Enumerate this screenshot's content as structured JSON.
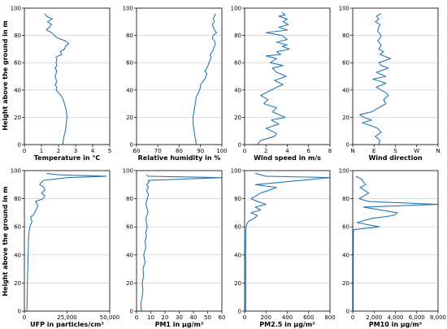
{
  "figure": {
    "ylabel": "Height above the ground in m",
    "line_color": "#2878b4"
  },
  "chart_data": [
    {
      "type": "line",
      "xlabel": "Temperature in °C",
      "ylabel": "Height above the ground in m",
      "xlim": [
        0,
        5
      ],
      "ylim": [
        0,
        100
      ],
      "xticks": [
        0,
        1,
        2,
        3,
        4,
        5
      ],
      "xtick_labels": [
        "0",
        "1",
        "2",
        "3",
        "4",
        "5"
      ],
      "yticks": [
        0,
        20,
        40,
        60,
        80,
        100
      ],
      "ytick_labels": [
        "0",
        "20",
        "40",
        "60",
        "80",
        "100"
      ],
      "grid": true,
      "series": [
        {
          "x": [
            2.25,
            2.3,
            2.4,
            2.45,
            2.5,
            2.45,
            2.35,
            2.2,
            2.0,
            1.85,
            1.9,
            1.8,
            1.9,
            1.85,
            1.8,
            1.85,
            1.9,
            1.8,
            1.9,
            1.85,
            1.9,
            1.85,
            2.0,
            2.2,
            2.1,
            2.35,
            2.4,
            2.6,
            2.4,
            1.95,
            1.75,
            1.6,
            1.3,
            1.6,
            1.35,
            1.65,
            1.3,
            1.2
          ],
          "y": [
            0,
            5,
            10,
            15,
            20,
            25,
            30,
            35,
            38,
            40,
            42,
            44,
            46,
            48,
            50,
            52,
            54,
            56,
            58,
            60,
            62,
            64,
            65,
            66,
            68,
            70,
            72,
            74,
            76,
            78,
            80,
            82,
            84,
            88,
            90,
            92,
            94,
            96
          ]
        }
      ]
    },
    {
      "type": "line",
      "xlabel": "Relative humidity in %",
      "ylabel": "",
      "xlim": [
        60,
        100
      ],
      "ylim": [
        0,
        100
      ],
      "xticks": [
        60,
        70,
        80,
        90,
        100
      ],
      "xtick_labels": [
        "60",
        "70",
        "80",
        "90",
        "100"
      ],
      "yticks": [
        0,
        20,
        40,
        60,
        80,
        100
      ],
      "ytick_labels": [
        "0",
        "20",
        "40",
        "60",
        "80",
        "100"
      ],
      "grid": true,
      "series": [
        {
          "x": [
            88,
            87.5,
            87,
            86.5,
            86.5,
            87,
            87.5,
            88,
            89,
            89.5,
            90,
            90,
            91,
            92,
            92.5,
            93,
            92,
            93,
            93.5,
            94,
            94.5,
            95,
            94.5,
            95.5,
            96,
            96.5,
            97,
            96.5,
            95.5,
            96,
            97.5,
            96.5,
            95.5,
            96.5,
            96,
            97
          ],
          "y": [
            0,
            5,
            10,
            15,
            20,
            25,
            30,
            35,
            38,
            40,
            42,
            44,
            46,
            48,
            50,
            52,
            54,
            56,
            58,
            60,
            62,
            64,
            66,
            68,
            70,
            72,
            74,
            76,
            78,
            80,
            82,
            84,
            88,
            90,
            92,
            96
          ]
        }
      ]
    },
    {
      "type": "line",
      "xlabel": "Wind speed in m/s",
      "ylabel": "",
      "xlim": [
        0,
        8
      ],
      "ylim": [
        0,
        100
      ],
      "xticks": [
        0,
        2,
        4,
        6,
        8
      ],
      "xtick_labels": [
        "0",
        "2",
        "4",
        "6",
        "8"
      ],
      "yticks": [
        0,
        20,
        40,
        60,
        80,
        100
      ],
      "ytick_labels": [
        "0",
        "20",
        "40",
        "60",
        "80",
        "100"
      ],
      "grid": true,
      "series": [
        {
          "x": [
            1.2,
            1.5,
            2.8,
            3.0,
            2.0,
            3.2,
            2.5,
            3.8,
            2.6,
            3.0,
            1.8,
            2.2,
            1.5,
            2.5,
            3.0,
            3.6,
            2.8,
            3.9,
            3.0,
            2.6,
            3.6,
            2.4,
            3.0,
            2.0,
            3.4,
            3.0,
            4.2,
            3.5,
            4.0,
            3.0,
            4.0,
            3.5,
            2.0,
            4.0,
            3.2,
            4.1,
            3.6,
            4.0,
            3.2,
            3.8,
            3.5
          ],
          "y": [
            0,
            3,
            6,
            8,
            12,
            15,
            18,
            20,
            24,
            27,
            30,
            33,
            36,
            40,
            42,
            44,
            47,
            50,
            53,
            56,
            58,
            60,
            63,
            65,
            66,
            68,
            70,
            72,
            73,
            75,
            77,
            80,
            82,
            84,
            86,
            88,
            90,
            92,
            94,
            95,
            97
          ]
        }
      ]
    },
    {
      "type": "line",
      "xlabel": "Wind direction",
      "ylabel": "",
      "xlim": [
        0,
        360
      ],
      "ylim": [
        0,
        100
      ],
      "xticks": [
        0,
        90,
        180,
        270,
        360
      ],
      "xtick_labels": [
        "N",
        "E",
        "S",
        "W",
        "N"
      ],
      "yticks": [
        0,
        20,
        40,
        60,
        80,
        100
      ],
      "ytick_labels": [
        "0",
        "20",
        "40",
        "60",
        "80",
        "100"
      ],
      "grid": true,
      "series": [
        {
          "x": [
            110,
            115,
            95,
            120,
            105,
            75,
            40,
            80,
            45,
            30,
            80,
            110,
            140,
            130,
            150,
            140,
            120,
            100,
            140,
            85,
            140,
            100,
            150,
            120,
            110,
            160,
            115,
            130,
            110,
            120,
            105,
            115,
            120,
            105,
            110,
            115,
            95,
            110,
            100,
            120
          ],
          "y": [
            0,
            3,
            6,
            9,
            12,
            14,
            16,
            18,
            20,
            22,
            24,
            27,
            30,
            33,
            36,
            38,
            40,
            42,
            45,
            48,
            50,
            53,
            56,
            58,
            60,
            63,
            66,
            68,
            70,
            73,
            76,
            78,
            80,
            83,
            86,
            88,
            90,
            92,
            94,
            96
          ]
        }
      ]
    },
    {
      "type": "line",
      "xlabel": "UFP in particles/cm³",
      "ylabel": "Height above the ground in m",
      "xlim": [
        0,
        50000
      ],
      "ylim": [
        0,
        100
      ],
      "xticks": [
        0,
        25000,
        50000
      ],
      "xtick_labels": [
        "0",
        "25,000",
        "50,000"
      ],
      "yticks": [
        0,
        20,
        40,
        60,
        80,
        100
      ],
      "ytick_labels": [
        "0",
        "20",
        "40",
        "60",
        "80",
        "100"
      ],
      "grid": true,
      "series": [
        {
          "x": [
            1500,
            1600,
            1800,
            2000,
            2200,
            2400,
            2600,
            3200,
            4500,
            3500,
            5000,
            6000,
            8000,
            6500,
            11000,
            12000,
            10000,
            12000,
            11500,
            9000,
            11000,
            25000,
            48000,
            20000,
            13000
          ],
          "y": [
            0,
            10,
            20,
            30,
            40,
            50,
            55,
            60,
            64,
            67,
            68,
            70,
            75,
            78,
            80,
            82,
            84,
            86,
            88,
            90,
            93,
            95,
            96,
            97,
            98
          ]
        }
      ]
    },
    {
      "type": "line",
      "xlabel": "PM1 in µg/m³",
      "ylabel": "",
      "xlim": [
        0,
        60
      ],
      "ylim": [
        0,
        100
      ],
      "xticks": [
        0,
        10,
        20,
        30,
        40,
        50,
        60
      ],
      "xtick_labels": [
        "0",
        "10",
        "20",
        "30",
        "40",
        "50",
        "60"
      ],
      "yticks": [
        0,
        20,
        40,
        60,
        80,
        100
      ],
      "ytick_labels": [
        "0",
        "20",
        "40",
        "60",
        "80",
        "100"
      ],
      "grid": true,
      "series": [
        {
          "x": [
            3.5,
            3.0,
            4.0,
            4.5,
            4.0,
            5.0,
            4.5,
            6.0,
            5.0,
            6.5,
            6.0,
            7.0,
            6.5,
            7.5,
            7.0,
            6.5,
            8.0,
            7.5,
            6.5,
            7.5,
            8.5,
            7.0,
            8.5,
            7.0,
            9.0,
            8.0,
            60.0,
            8.0,
            7.0
          ],
          "y": [
            0,
            5,
            10,
            15,
            20,
            25,
            30,
            35,
            40,
            45,
            50,
            53,
            56,
            60,
            63,
            66,
            70,
            73,
            76,
            80,
            83,
            86,
            88,
            90,
            92,
            93,
            95,
            96,
            97
          ]
        }
      ]
    },
    {
      "type": "line",
      "xlabel": "PM2.5 in µg/m³",
      "ylabel": "",
      "xlim": [
        0,
        800
      ],
      "ylim": [
        0,
        100
      ],
      "xticks": [
        0,
        200,
        400,
        600,
        800
      ],
      "xtick_labels": [
        "0",
        "200",
        "400",
        "600",
        "800"
      ],
      "yticks": [
        0,
        20,
        40,
        60,
        80,
        100
      ],
      "ytick_labels": [
        "0",
        "20",
        "40",
        "60",
        "80",
        "100"
      ],
      "grid": true,
      "series": [
        {
          "x": [
            10,
            10,
            10,
            12,
            12,
            15,
            20,
            40,
            90,
            120,
            60,
            150,
            100,
            200,
            120,
            60,
            150,
            300,
            100,
            800,
            200,
            100
          ],
          "y": [
            0,
            20,
            40,
            55,
            58,
            60,
            62,
            64,
            66,
            68,
            70,
            72,
            74,
            76,
            78,
            80,
            84,
            88,
            90,
            95,
            96,
            98
          ]
        }
      ]
    },
    {
      "type": "line",
      "xlabel": "PM10 in µg/m³",
      "ylabel": "",
      "xlim": [
        0,
        8000
      ],
      "ylim": [
        0,
        100
      ],
      "xticks": [
        0,
        2000,
        4000,
        6000,
        8000
      ],
      "xtick_labels": [
        "0",
        "2,000",
        "4,000",
        "6,000",
        "8,000"
      ],
      "yticks": [
        0,
        20,
        40,
        60,
        80,
        100
      ],
      "ytick_labels": [
        "0",
        "20",
        "40",
        "60",
        "80",
        "100"
      ],
      "grid": true,
      "series": [
        {
          "x": [
            40,
            40,
            50,
            60,
            80,
            2500,
            400,
            1800,
            3800,
            4200,
            1000,
            8000,
            1500,
            600,
            1500,
            700,
            1200,
            800,
            300
          ],
          "y": [
            0,
            20,
            40,
            55,
            58,
            60,
            63,
            66,
            68,
            70,
            74,
            76,
            78,
            80,
            84,
            88,
            90,
            94,
            96
          ]
        }
      ]
    }
  ]
}
